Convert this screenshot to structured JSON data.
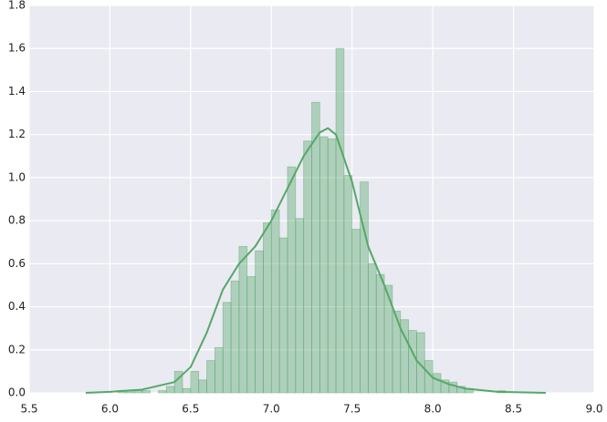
{
  "chart_data": {
    "type": "histogram",
    "bins": [
      6.05,
      6.1,
      6.15,
      6.2,
      6.25,
      6.3,
      6.35,
      6.4,
      6.45,
      6.5,
      6.55,
      6.6,
      6.65,
      6.7,
      6.75,
      6.8,
      6.85,
      6.9,
      6.95,
      7.0,
      7.05,
      7.1,
      7.15,
      7.2,
      7.25,
      7.3,
      7.35,
      7.4,
      7.45,
      7.5,
      7.55,
      7.6,
      7.65,
      7.7,
      7.75,
      7.8,
      7.85,
      7.9,
      7.95,
      8.0,
      8.05,
      8.1,
      8.15,
      8.2,
      8.25,
      8.3,
      8.35,
      8.4,
      8.45
    ],
    "values": [
      0.01,
      0.01,
      0.01,
      0.01,
      0,
      0.01,
      0.03,
      0.1,
      0.02,
      0.1,
      0.06,
      0.15,
      0.21,
      0.42,
      0.52,
      0.68,
      0.54,
      0.66,
      0.79,
      0.85,
      0.72,
      1.05,
      0.81,
      1.17,
      1.35,
      1.19,
      1.18,
      1.6,
      1.01,
      0.76,
      0.98,
      0.6,
      0.55,
      0.5,
      0.38,
      0.34,
      0.29,
      0.28,
      0.15,
      0.09,
      0.06,
      0.05,
      0.03,
      0.02,
      0,
      0,
      0,
      0.01
    ],
    "color": "#55a868",
    "kde": {
      "x": [
        5.85,
        6.0,
        6.2,
        6.4,
        6.5,
        6.6,
        6.7,
        6.8,
        6.9,
        7.0,
        7.1,
        7.2,
        7.3,
        7.35,
        7.4,
        7.5,
        7.6,
        7.7,
        7.8,
        7.9,
        8.0,
        8.1,
        8.2,
        8.4,
        8.7
      ],
      "values": [
        0,
        0.005,
        0.015,
        0.05,
        0.12,
        0.28,
        0.48,
        0.6,
        0.68,
        0.8,
        0.95,
        1.1,
        1.21,
        1.23,
        1.2,
        0.98,
        0.68,
        0.5,
        0.3,
        0.15,
        0.07,
        0.04,
        0.02,
        0.005,
        0
      ],
      "color": "#55a868"
    },
    "xlim": [
      5.5,
      9.0
    ],
    "xticks": [
      5.5,
      {
        "value": 6,
        "label": "6.0"
      },
      6.5,
      {
        "value": 7,
        "label": "7.0"
      },
      7.5,
      {
        "value": 8,
        "label": "8.0"
      },
      8.5,
      {
        "value": 9,
        "label": "9.0"
      }
    ],
    "ylim": [
      0,
      1.8
    ],
    "yticks": [
      {
        "value": 0,
        "label": "0.0"
      },
      0.2,
      0.4,
      0.6,
      0.8,
      {
        "value": 1,
        "label": "1.0"
      },
      1.2,
      1.4,
      1.6,
      1.8
    ],
    "grid": true
  }
}
